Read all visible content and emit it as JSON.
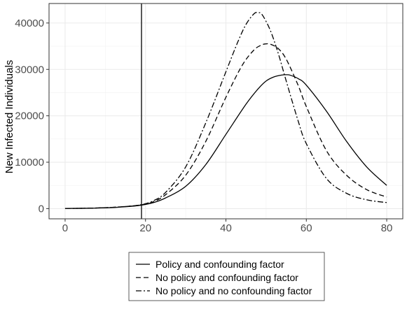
{
  "chart_data": {
    "type": "line",
    "title": "",
    "xlabel": "",
    "ylabel": "New Infected Individuals",
    "xlim": [
      -4,
      84
    ],
    "ylim": [
      -2200,
      44200
    ],
    "x_ticks": [
      0,
      20,
      40,
      60,
      80
    ],
    "x_tick_labels": [
      "0",
      "20",
      "40",
      "60",
      "80"
    ],
    "y_ticks": [
      0,
      10000,
      20000,
      30000,
      40000
    ],
    "y_tick_labels": [
      "0",
      "10000",
      "20000",
      "30000",
      "40000"
    ],
    "grid": true,
    "legend_position": "bottom",
    "vline": {
      "x": 19
    },
    "series": [
      {
        "name": "Policy and confounding factor",
        "dash": "solid",
        "color": "#000000",
        "points": [
          [
            0,
            30
          ],
          [
            5,
            70
          ],
          [
            10,
            170
          ],
          [
            15,
            400
          ],
          [
            19,
            750
          ],
          [
            22,
            1300
          ],
          [
            25,
            2300
          ],
          [
            30,
            4800
          ],
          [
            35,
            9500
          ],
          [
            40,
            16000
          ],
          [
            45,
            22500
          ],
          [
            48,
            25800
          ],
          [
            50,
            27500
          ],
          [
            52,
            28400
          ],
          [
            54,
            28800
          ],
          [
            55,
            28850
          ],
          [
            56,
            28750
          ],
          [
            58,
            28000
          ],
          [
            60,
            26600
          ],
          [
            65,
            21000
          ],
          [
            70,
            14500
          ],
          [
            75,
            9000
          ],
          [
            80,
            5000
          ]
        ]
      },
      {
        "name": "No policy and confounding factor",
        "dash": "dashed",
        "color": "#000000",
        "points": [
          [
            0,
            30
          ],
          [
            5,
            80
          ],
          [
            10,
            200
          ],
          [
            15,
            450
          ],
          [
            19,
            820
          ],
          [
            22,
            1500
          ],
          [
            25,
            3000
          ],
          [
            30,
            7200
          ],
          [
            35,
            14500
          ],
          [
            40,
            24000
          ],
          [
            44,
            30800
          ],
          [
            47,
            34200
          ],
          [
            49,
            35300
          ],
          [
            50,
            35500
          ],
          [
            51,
            35450
          ],
          [
            53,
            34500
          ],
          [
            55,
            32200
          ],
          [
            58,
            26500
          ],
          [
            60,
            22000
          ],
          [
            65,
            12500
          ],
          [
            70,
            7200
          ],
          [
            75,
            4100
          ],
          [
            80,
            2500
          ]
        ]
      },
      {
        "name": "No policy and no confounding factor",
        "dash": "dashdot",
        "color": "#000000",
        "points": [
          [
            0,
            30
          ],
          [
            5,
            80
          ],
          [
            10,
            200
          ],
          [
            15,
            450
          ],
          [
            19,
            850
          ],
          [
            22,
            1700
          ],
          [
            25,
            3500
          ],
          [
            30,
            9000
          ],
          [
            35,
            18500
          ],
          [
            40,
            29500
          ],
          [
            43,
            36000
          ],
          [
            45,
            39700
          ],
          [
            47,
            42000
          ],
          [
            48,
            42200
          ],
          [
            49,
            41800
          ],
          [
            51,
            38500
          ],
          [
            53,
            33500
          ],
          [
            55,
            27500
          ],
          [
            58,
            18800
          ],
          [
            60,
            14000
          ],
          [
            65,
            6500
          ],
          [
            70,
            3300
          ],
          [
            75,
            1900
          ],
          [
            80,
            1300
          ]
        ]
      }
    ]
  }
}
